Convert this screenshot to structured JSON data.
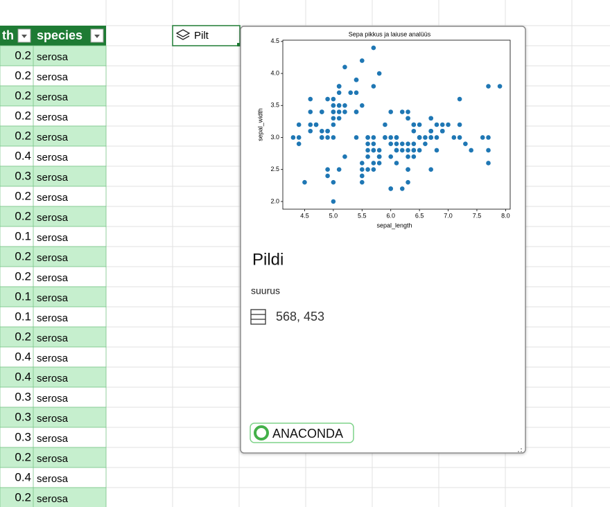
{
  "sheet": {
    "headers": [
      "th",
      "species"
    ],
    "rows": [
      [
        0.2,
        "serosa"
      ],
      [
        0.2,
        "serosa"
      ],
      [
        0.2,
        "serosa"
      ],
      [
        0.2,
        "serosa"
      ],
      [
        0.2,
        "serosa"
      ],
      [
        0.4,
        "serosa"
      ],
      [
        0.3,
        "serosa"
      ],
      [
        0.2,
        "serosa"
      ],
      [
        0.2,
        "serosa"
      ],
      [
        0.1,
        "serosa"
      ],
      [
        0.2,
        "serosa"
      ],
      [
        0.2,
        "serosa"
      ],
      [
        0.1,
        "serosa"
      ],
      [
        0.1,
        "serosa"
      ],
      [
        0.2,
        "serosa"
      ],
      [
        0.4,
        "serosa"
      ],
      [
        0.4,
        "serosa"
      ],
      [
        0.3,
        "serosa"
      ],
      [
        0.3,
        "serosa"
      ],
      [
        0.3,
        "serosa"
      ],
      [
        0.2,
        "serosa"
      ],
      [
        0.4,
        "serosa"
      ],
      [
        0.2,
        "serosa"
      ]
    ]
  },
  "cell": "Pilt",
  "card": {
    "title": "Pildi",
    "label": "suurus",
    "size": "568, 453",
    "brand": "ANACONDA"
  },
  "chart_data": {
    "type": "scatter",
    "title": "Sepa pikkus ja laiuse analüüs",
    "x_label": "sepal_length",
    "y_label": "sepal_width",
    "color": "#1f77b4",
    "x": [
      5.1,
      4.9,
      4.7,
      4.6,
      5.0,
      5.4,
      4.6,
      5.0,
      4.4,
      4.9,
      5.4,
      4.8,
      4.8,
      4.3,
      5.8,
      5.7,
      5.4,
      5.1,
      5.7,
      5.1,
      5.4,
      5.1,
      4.6,
      5.1,
      4.8,
      5.0,
      5.0,
      5.2,
      5.2,
      4.7,
      4.8,
      5.4,
      5.2,
      5.5,
      4.9,
      5.0,
      5.5,
      4.9,
      4.4,
      5.1,
      5.0,
      4.5,
      4.4,
      5.0,
      5.1,
      4.8,
      5.1,
      4.6,
      5.3,
      5.0,
      7.0,
      6.4,
      6.9,
      5.5,
      6.5,
      5.7,
      6.3,
      4.9,
      6.6,
      5.2,
      5.0,
      5.9,
      6.0,
      6.1,
      5.6,
      6.7,
      5.6,
      5.8,
      6.2,
      5.6,
      5.9,
      6.1,
      6.3,
      6.1,
      6.4,
      6.6,
      6.8,
      6.7,
      6.0,
      5.7,
      5.5,
      5.5,
      5.8,
      6.0,
      5.4,
      6.0,
      6.7,
      6.3,
      5.6,
      5.5,
      5.5,
      6.1,
      5.8,
      5.0,
      5.6,
      5.7,
      5.7,
      6.2,
      5.1,
      5.7,
      6.3,
      5.8,
      7.1,
      6.3,
      6.5,
      7.6,
      4.9,
      7.3,
      6.7,
      7.2,
      6.5,
      6.4,
      6.8,
      5.7,
      5.8,
      6.4,
      6.5,
      7.7,
      7.7,
      6.0,
      6.9,
      5.6,
      7.7,
      6.3,
      6.7,
      7.2,
      6.2,
      6.1,
      6.4,
      7.2,
      7.4,
      7.9,
      6.4,
      6.3,
      6.1,
      7.7,
      6.3,
      6.4,
      6.0,
      6.9,
      6.7,
      6.9,
      5.8,
      6.8,
      6.7,
      6.7,
      6.3,
      6.5,
      6.2,
      5.9
    ],
    "values": [
      3.5,
      3.0,
      3.2,
      3.1,
      3.6,
      3.9,
      3.4,
      3.4,
      2.9,
      3.1,
      3.7,
      3.4,
      3.0,
      3.0,
      4.0,
      4.4,
      3.9,
      3.5,
      3.8,
      3.8,
      3.4,
      3.7,
      3.6,
      3.3,
      3.4,
      3.0,
      3.4,
      3.5,
      3.4,
      3.2,
      3.1,
      3.4,
      4.1,
      4.2,
      3.1,
      3.2,
      3.5,
      3.6,
      3.0,
      3.4,
      3.5,
      2.3,
      3.2,
      3.5,
      3.8,
      3.0,
      3.8,
      3.2,
      3.7,
      3.3,
      3.2,
      3.2,
      3.1,
      2.3,
      2.8,
      2.8,
      3.3,
      2.4,
      2.9,
      2.7,
      2.0,
      3.0,
      2.2,
      2.9,
      2.9,
      3.1,
      3.0,
      2.7,
      2.2,
      2.5,
      3.2,
      2.8,
      2.5,
      2.8,
      2.9,
      3.0,
      2.8,
      3.0,
      2.9,
      2.6,
      2.4,
      2.4,
      2.7,
      2.7,
      3.0,
      3.4,
      3.1,
      2.3,
      3.0,
      2.5,
      2.6,
      3.0,
      2.6,
      2.3,
      2.7,
      3.0,
      2.9,
      2.9,
      2.5,
      2.8,
      3.3,
      2.7,
      3.0,
      2.9,
      3.0,
      3.0,
      2.5,
      2.9,
      2.5,
      3.6,
      3.2,
      2.7,
      3.0,
      2.5,
      2.8,
      3.2,
      3.0,
      3.8,
      2.6,
      2.2,
      3.2,
      2.8,
      2.8,
      2.7,
      3.3,
      3.2,
      2.8,
      3.0,
      2.8,
      3.0,
      2.8,
      3.8,
      2.8,
      2.8,
      2.6,
      3.0,
      3.4,
      3.1,
      3.0,
      3.1,
      3.1,
      3.1,
      2.7,
      3.2,
      3.3,
      3.0,
      2.5,
      3.0,
      3.4,
      3.0
    ],
    "xlim": [
      4.12,
      8.08
    ],
    "ylim": [
      1.88,
      4.52
    ],
    "xticks": [
      4.5,
      {
        "value": 5,
        "label": "5.0"
      },
      5.5,
      {
        "value": 6,
        "label": "6.0"
      },
      6.5,
      {
        "value": 7,
        "label": "7.0"
      },
      7.5,
      {
        "value": 8,
        "label": "8.0"
      }
    ],
    "yticks": [
      {
        "value": 2,
        "label": "2.0"
      },
      2.5,
      {
        "value": 3,
        "label": "3.0"
      },
      3.5,
      {
        "value": 4,
        "label": "4.0"
      },
      4.5
    ]
  }
}
